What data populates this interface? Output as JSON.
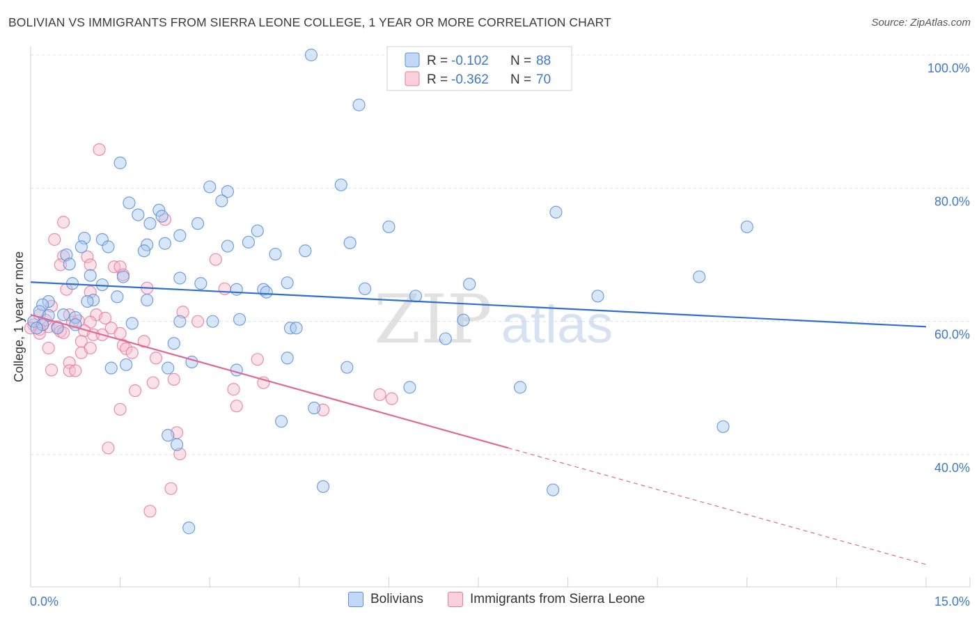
{
  "title": "BOLIVIAN VS IMMIGRANTS FROM SIERRA LEONE COLLEGE, 1 YEAR OR MORE CORRELATION CHART",
  "source": "Source: ZipAtlas.com",
  "watermark": {
    "part1": "ZIP",
    "part2": "atlas"
  },
  "colors": {
    "blue_fill": "#a9c8f2",
    "blue_stroke": "#5b8fd6",
    "blue_line": "#2f6fcc",
    "pink_fill": "#f7bccd",
    "pink_stroke": "#e87a9c",
    "pink_line": "#e06894",
    "axis_label": "#3f78c8"
  },
  "chart_data": {
    "type": "scatter",
    "xlabel": "",
    "ylabel": "College, 1 year or more",
    "xlim": [
      0,
      15
    ],
    "ylim": [
      22,
      102
    ],
    "x_tick_labels": {
      "min": "0.0%",
      "max": "15.0%"
    },
    "y_ticks": [
      {
        "value": 100,
        "label": "100.0%"
      },
      {
        "value": 80,
        "label": "80.0%"
      },
      {
        "value": 60,
        "label": "60.0%"
      },
      {
        "value": 40,
        "label": "40.0%"
      }
    ],
    "legend": [
      {
        "r_label": "R =",
        "r_value": "-0.102",
        "n_label": "N =",
        "n_value": "88"
      },
      {
        "r_label": "R =",
        "r_value": "-0.362",
        "n_label": "N =",
        "n_value": "70"
      }
    ],
    "series": [
      {
        "name": "Bolivians",
        "color": "blue",
        "trend": {
          "x0": 0,
          "y0": 65.9,
          "x1": 15,
          "y1": 59.2,
          "solid_until": 15
        },
        "points": [
          [
            4.7,
            100.0
          ],
          [
            5.5,
            92.5
          ],
          [
            1.5,
            83.8
          ],
          [
            3.0,
            80.2
          ],
          [
            3.3,
            79.5
          ],
          [
            5.2,
            80.5
          ],
          [
            3.2,
            78.1
          ],
          [
            1.65,
            77.8
          ],
          [
            2.15,
            76.7
          ],
          [
            1.8,
            76.0
          ],
          [
            2.2,
            75.8
          ],
          [
            2.0,
            74.7
          ],
          [
            2.8,
            74.7
          ],
          [
            3.8,
            73.6
          ],
          [
            6.0,
            74.2
          ],
          [
            8.8,
            76.4
          ],
          [
            12.0,
            74.2
          ],
          [
            2.5,
            72.9
          ],
          [
            0.9,
            72.5
          ],
          [
            1.2,
            72.3
          ],
          [
            0.85,
            71.2
          ],
          [
            1.3,
            71.2
          ],
          [
            1.95,
            71.5
          ],
          [
            2.25,
            71.7
          ],
          [
            3.3,
            71.3
          ],
          [
            3.65,
            71.9
          ],
          [
            5.35,
            71.8
          ],
          [
            1.9,
            70.6
          ],
          [
            0.6,
            70.0
          ],
          [
            4.1,
            70.1
          ],
          [
            4.6,
            70.6
          ],
          [
            0.65,
            68.6
          ],
          [
            1.55,
            66.7
          ],
          [
            2.5,
            66.5
          ],
          [
            1.0,
            66.9
          ],
          [
            1.2,
            65.5
          ],
          [
            0.7,
            65.7
          ],
          [
            2.85,
            65.7
          ],
          [
            4.3,
            65.8
          ],
          [
            7.35,
            65.6
          ],
          [
            11.2,
            66.7
          ],
          [
            3.45,
            64.8
          ],
          [
            3.9,
            64.8
          ],
          [
            3.95,
            64.4
          ],
          [
            5.6,
            64.9
          ],
          [
            6.45,
            63.8
          ],
          [
            9.5,
            63.8
          ],
          [
            0.3,
            63.0
          ],
          [
            0.2,
            62.5
          ],
          [
            1.05,
            63.2
          ],
          [
            0.95,
            63.0
          ],
          [
            1.45,
            63.7
          ],
          [
            1.95,
            63.2
          ],
          [
            0.15,
            61.5
          ],
          [
            0.55,
            61.0
          ],
          [
            0.3,
            60.9
          ],
          [
            0.75,
            60.6
          ],
          [
            0.05,
            60.0
          ],
          [
            0.2,
            59.5
          ],
          [
            0.45,
            59.0
          ],
          [
            0.75,
            59.5
          ],
          [
            1.7,
            59.7
          ],
          [
            2.5,
            60.0
          ],
          [
            3.05,
            60.0
          ],
          [
            3.5,
            60.3
          ],
          [
            4.35,
            59.0
          ],
          [
            4.45,
            59.0
          ],
          [
            7.25,
            60.2
          ],
          [
            2.4,
            56.7
          ],
          [
            6.95,
            57.4
          ],
          [
            1.35,
            53.0
          ],
          [
            1.6,
            53.5
          ],
          [
            2.3,
            53.0
          ],
          [
            2.7,
            53.9
          ],
          [
            3.45,
            52.7
          ],
          [
            4.3,
            54.5
          ],
          [
            5.3,
            53.1
          ],
          [
            6.35,
            50.1
          ],
          [
            8.2,
            50.1
          ],
          [
            4.2,
            45.0
          ],
          [
            4.75,
            47.0
          ],
          [
            2.3,
            42.9
          ],
          [
            2.45,
            41.5
          ],
          [
            11.6,
            44.2
          ],
          [
            4.9,
            35.2
          ],
          [
            8.75,
            34.7
          ],
          [
            2.65,
            29.0
          ],
          [
            0.1,
            59.0
          ]
        ]
      },
      {
        "name": "Immigrants from Sierra Leone",
        "color": "pink",
        "trend": {
          "x0": 0,
          "y0": 61.0,
          "x1": 15,
          "y1": 23.5,
          "solid_until": 8.0
        },
        "points": [
          [
            1.15,
            85.8
          ],
          [
            0.55,
            74.9
          ],
          [
            0.4,
            72.3
          ],
          [
            2.25,
            75.3
          ],
          [
            0.55,
            69.8
          ],
          [
            0.5,
            68.5
          ],
          [
            0.95,
            69.7
          ],
          [
            3.1,
            69.3
          ],
          [
            1.4,
            68.2
          ],
          [
            1.5,
            68.2
          ],
          [
            1.55,
            67.0
          ],
          [
            1.0,
            68.5
          ],
          [
            0.6,
            64.8
          ],
          [
            1.95,
            65.0
          ],
          [
            3.25,
            64.9
          ],
          [
            1.0,
            64.4
          ],
          [
            0.35,
            62.3
          ],
          [
            0.15,
            61.0
          ],
          [
            1.1,
            61.0
          ],
          [
            2.55,
            61.4
          ],
          [
            0.8,
            60.1
          ],
          [
            0.05,
            59.5
          ],
          [
            0.2,
            59.5
          ],
          [
            0.3,
            59.2
          ],
          [
            0.45,
            59.2
          ],
          [
            0.7,
            59.9
          ],
          [
            1.0,
            59.9
          ],
          [
            0.15,
            58.8
          ],
          [
            0.5,
            58.5
          ],
          [
            0.9,
            58.6
          ],
          [
            1.05,
            58.0
          ],
          [
            1.2,
            58.0
          ],
          [
            0.55,
            58.3
          ],
          [
            1.35,
            59.0
          ],
          [
            1.5,
            58.2
          ],
          [
            0.85,
            57.0
          ],
          [
            1.55,
            56.4
          ],
          [
            1.9,
            57.0
          ],
          [
            0.3,
            56.0
          ],
          [
            1.6,
            55.9
          ],
          [
            0.85,
            55.3
          ],
          [
            2.1,
            54.5
          ],
          [
            3.8,
            54.3
          ],
          [
            0.65,
            53.8
          ],
          [
            0.35,
            52.7
          ],
          [
            0.65,
            52.6
          ],
          [
            0.75,
            52.6
          ],
          [
            2.4,
            51.3
          ],
          [
            1.75,
            49.6
          ],
          [
            2.05,
            50.8
          ],
          [
            3.4,
            49.8
          ],
          [
            3.9,
            50.8
          ],
          [
            5.85,
            49.0
          ],
          [
            6.05,
            48.4
          ],
          [
            1.5,
            46.8
          ],
          [
            3.45,
            47.3
          ],
          [
            4.9,
            46.7
          ],
          [
            2.45,
            43.3
          ],
          [
            1.3,
            41.0
          ],
          [
            2.5,
            40.1
          ],
          [
            2.35,
            34.9
          ],
          [
            2.0,
            31.5
          ],
          [
            0.0,
            59.0
          ],
          [
            0.25,
            60.2
          ],
          [
            0.65,
            61.0
          ],
          [
            1.25,
            60.5
          ],
          [
            2.8,
            60.0
          ],
          [
            0.15,
            58.2
          ],
          [
            1.0,
            56.0
          ],
          [
            1.7,
            55.3
          ]
        ]
      }
    ]
  }
}
